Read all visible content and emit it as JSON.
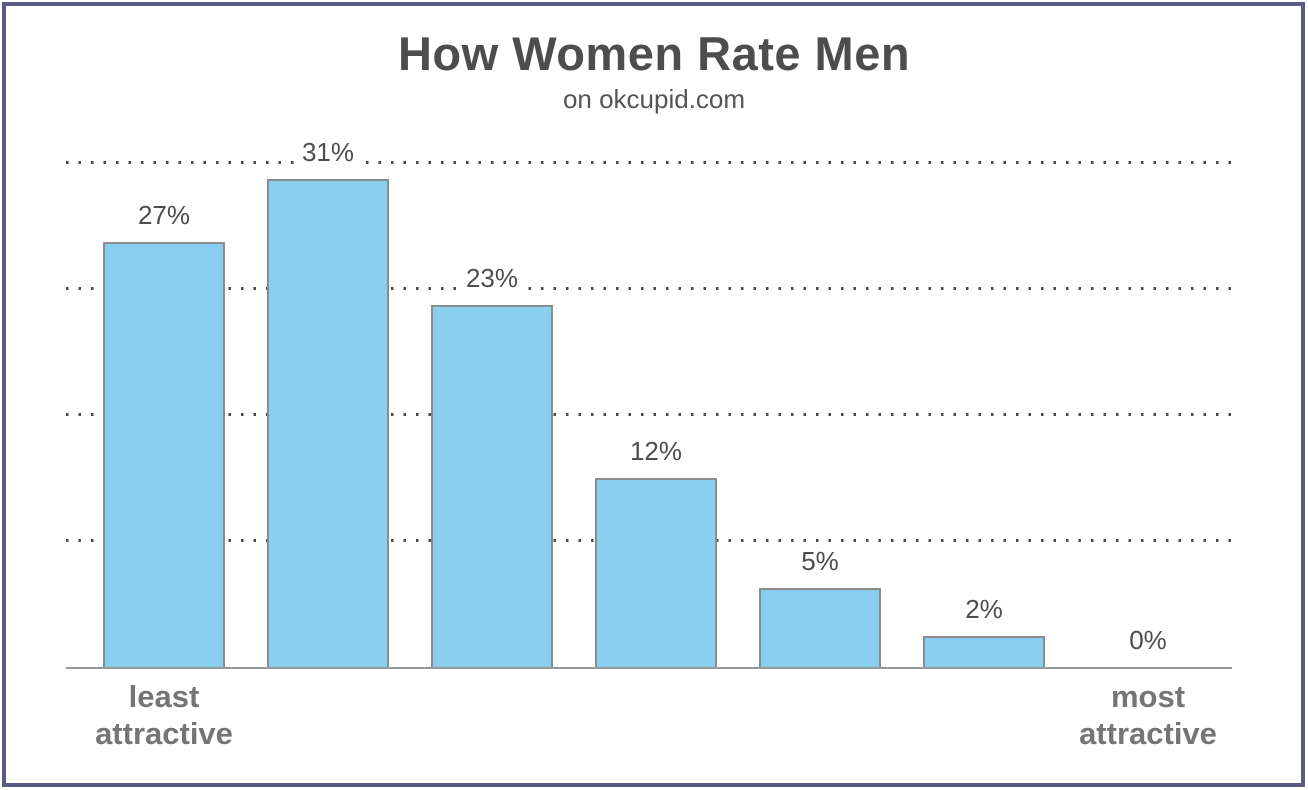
{
  "chart_data": {
    "type": "bar",
    "title": "How Women Rate Men",
    "subtitle": "on okcupid.com",
    "categories": [
      "least attractive",
      "",
      "",
      "",
      "",
      "",
      "most attractive"
    ],
    "values": [
      27,
      31,
      23,
      12,
      5,
      2,
      0
    ],
    "value_labels": [
      "27%",
      "31%",
      "23%",
      "12%",
      "5%",
      "2%",
      "0%"
    ],
    "xlabel_left": "least attractive",
    "xlabel_right": "most attractive",
    "xlabel": "",
    "ylabel": "",
    "ylim": [
      0,
      33
    ],
    "gridline_values": [
      8,
      16,
      24,
      32
    ],
    "grid_style": "dotted-horizontal",
    "legend": "none",
    "colors": {
      "bar_fill": "#89CFEF",
      "bar_border": "#8C8C8C",
      "gridline": "#4A4A4A",
      "axis_line": "#999999",
      "title_text": "#4D4D4D",
      "subtitle_text": "#555555",
      "axis_label_text": "#757575",
      "frame_border": "#5A5A82",
      "background": "#FFFFFF"
    }
  }
}
